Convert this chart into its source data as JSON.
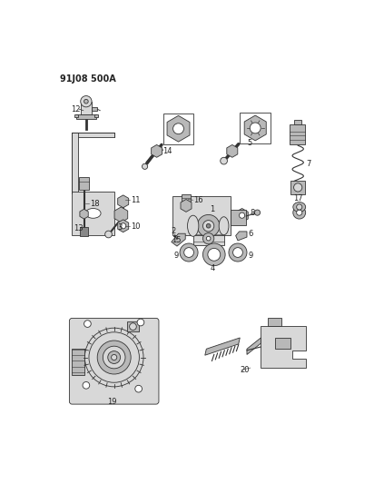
{
  "title": "91J08 500A",
  "background_color": "#ffffff",
  "fig_width": 4.12,
  "fig_height": 5.33,
  "dpi": 100,
  "line_color": "#333333",
  "fill_light": "#d8d8d8",
  "fill_mid": "#b8b8b8",
  "fill_dark": "#888888"
}
